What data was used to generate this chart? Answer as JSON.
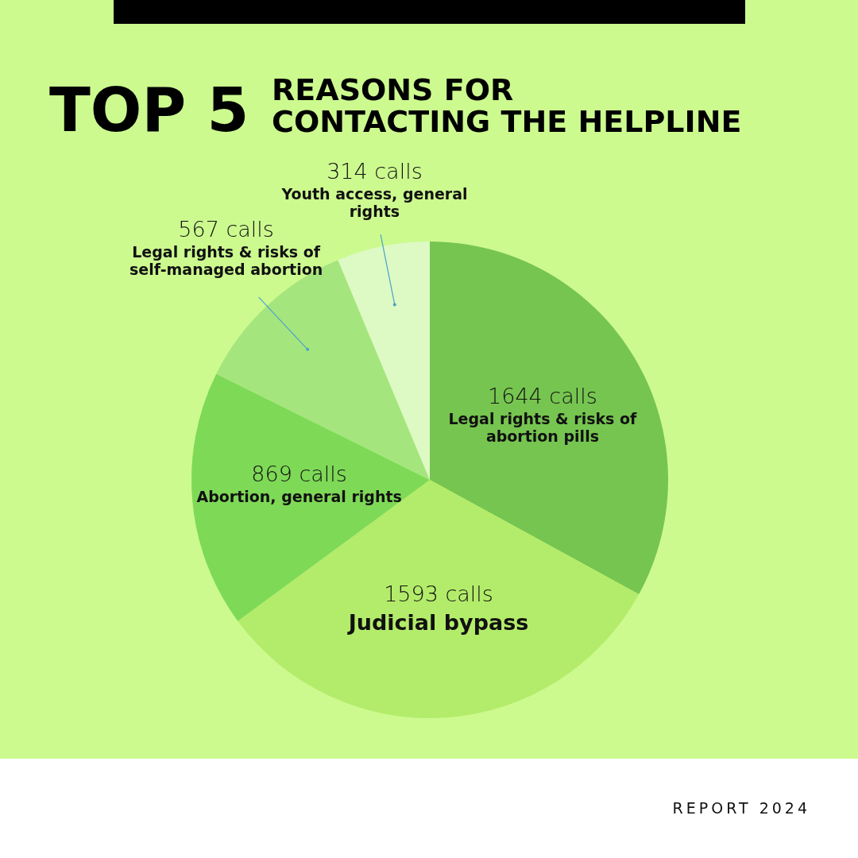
{
  "chart_data": {
    "type": "pie",
    "title": "TOP 5",
    "subtitle": "REASONS FOR CONTACTING THE HELPLINE",
    "categories": [
      "Legal rights & risks of abortion pills",
      "Judicial bypass",
      "Abortion, general rights",
      "Legal rights & risks of self-managed abortion",
      "Youth access, general rights"
    ],
    "values": [
      1644,
      1593,
      869,
      567,
      314
    ],
    "value_labels": [
      "1644 calls",
      "1593 calls",
      "869 calls",
      "567 calls",
      "314 calls"
    ],
    "colors": [
      "#76c550",
      "#b3ec6a",
      "#7ed957",
      "#a5e57e",
      "#ddf9c4"
    ],
    "annotations": [
      "REPORT 2024"
    ]
  }
}
